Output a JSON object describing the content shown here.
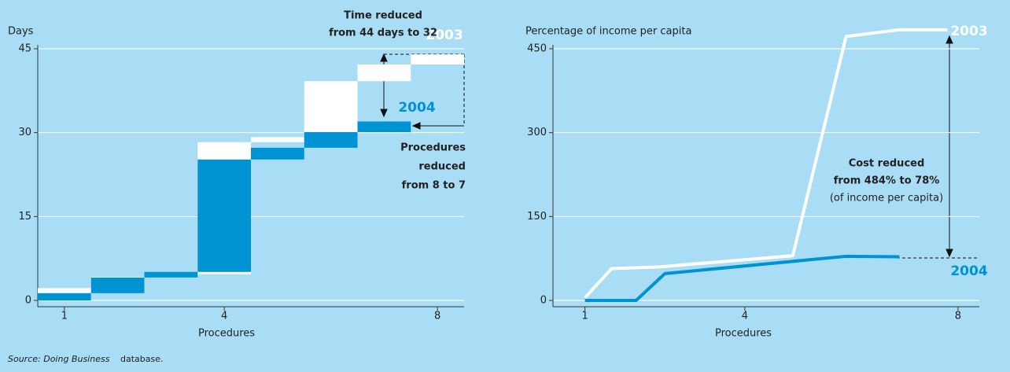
{
  "charts": [
    {
      "type": "floating-bar",
      "ylabel": "Days",
      "xlabel": "Procedures",
      "xlim": [
        0.5,
        8.5
      ],
      "xticks": [
        1,
        4,
        8
      ],
      "ylim": [
        0,
        45
      ],
      "yticks": [
        0,
        15,
        30,
        45
      ],
      "grid": true,
      "series": [
        {
          "name": "2003",
          "color": "#ffffff",
          "x": [
            1,
            2,
            3,
            4,
            5,
            6,
            7,
            8
          ],
          "values": [
            2.2,
            2,
            0.5,
            23.6,
            0.9,
            10,
            3,
            1.8
          ]
        },
        {
          "name": "2004",
          "color": "#0093d3",
          "x": [
            1,
            2,
            3,
            4,
            5,
            6,
            7
          ],
          "values": [
            1.3,
            2.8,
            1,
            20.1,
            2.1,
            2.8,
            1.9
          ]
        }
      ],
      "annotations": [
        "Time reduced",
        "from 44 days to 32",
        "Procedures",
        "reduced",
        "from 8 to 7"
      ]
    },
    {
      "type": "line",
      "ylabel": "Percentage of income per capita",
      "xlabel": "Procedures",
      "xlim": [
        0.4,
        8.4
      ],
      "xticks": [
        1,
        4,
        8
      ],
      "ylim": [
        0,
        450
      ],
      "yticks": [
        0,
        150,
        300,
        450
      ],
      "grid": true,
      "series": [
        {
          "name": "2003",
          "color": "#ffffff",
          "x": [
            1,
            1.5,
            2.4,
            4.9,
            5.9,
            6.9,
            7.8
          ],
          "values": [
            5,
            57,
            60,
            80,
            472,
            484,
            484
          ]
        },
        {
          "name": "2004",
          "color": "#0093d3",
          "x": [
            1,
            1.96,
            2.5,
            5.9,
            6.9
          ],
          "values": [
            0,
            0,
            48,
            79,
            78
          ]
        }
      ],
      "annotations": [
        "Cost reduced",
        "from 484% to 78%",
        "(of income per capita)"
      ]
    }
  ],
  "source": [
    "Source: Doing Business",
    "database."
  ]
}
